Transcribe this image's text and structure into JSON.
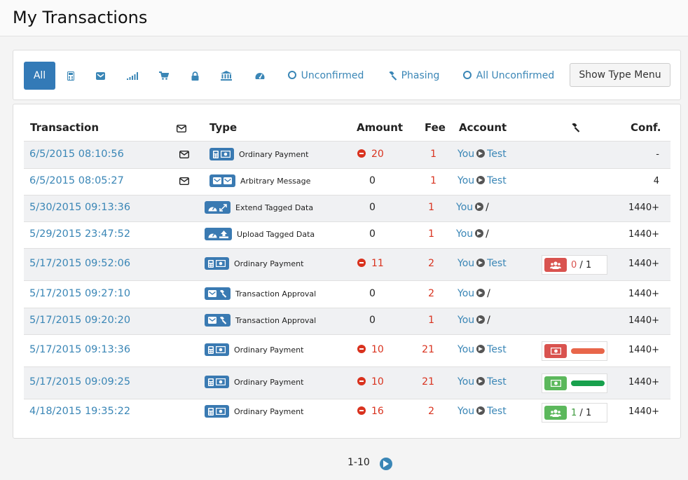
{
  "page": {
    "title": "My Transactions"
  },
  "filters": {
    "all": "All",
    "unconfirmed": "Unconfirmed",
    "phasing": "Phasing",
    "all_unconfirmed": "All Unconfirmed",
    "show_type_menu": "Show Type Menu"
  },
  "table": {
    "headers": {
      "transaction": "Transaction",
      "type": "Type",
      "amount": "Amount",
      "fee": "Fee",
      "account": "Account",
      "conf": "Conf."
    },
    "rows": [
      {
        "date": "6/5/2015 08:10:56",
        "message": true,
        "type": "Ordinary Payment",
        "amount": "20",
        "negative": true,
        "fee": "1",
        "from": "You",
        "to": "Test",
        "conf": "-"
      },
      {
        "date": "6/5/2015 08:05:27",
        "message": true,
        "type": "Arbitrary Message",
        "amount": "0",
        "negative": false,
        "fee": "1",
        "from": "You",
        "to": "Test",
        "conf": "4"
      },
      {
        "date": "5/30/2015 09:13:36",
        "message": false,
        "type": "Extend Tagged Data",
        "amount": "0",
        "negative": false,
        "fee": "1",
        "from": "You",
        "to": "/",
        "conf": "1440+"
      },
      {
        "date": "5/29/2015 23:47:52",
        "message": false,
        "type": "Upload Tagged Data",
        "amount": "0",
        "negative": false,
        "fee": "1",
        "from": "You",
        "to": "/",
        "conf": "1440+"
      },
      {
        "date": "5/17/2015 09:52:06",
        "message": false,
        "type": "Ordinary Payment",
        "amount": "11",
        "negative": true,
        "fee": "2",
        "from": "You",
        "to": "Test",
        "conf": "1440+",
        "phasing": {
          "kind": "votes",
          "color": "red",
          "count": "0",
          "of": "1"
        }
      },
      {
        "date": "5/17/2015 09:27:10",
        "message": false,
        "type": "Transaction Approval",
        "amount": "0",
        "negative": false,
        "fee": "2",
        "from": "You",
        "to": "/",
        "conf": "1440+"
      },
      {
        "date": "5/17/2015 09:20:20",
        "message": false,
        "type": "Transaction Approval",
        "amount": "0",
        "negative": false,
        "fee": "1",
        "from": "You",
        "to": "/",
        "conf": "1440+"
      },
      {
        "date": "5/17/2015 09:13:36",
        "message": false,
        "type": "Ordinary Payment",
        "amount": "10",
        "negative": true,
        "fee": "21",
        "from": "You",
        "to": "Test",
        "conf": "1440+",
        "phasing": {
          "kind": "balance",
          "color": "red"
        }
      },
      {
        "date": "5/17/2015 09:09:25",
        "message": false,
        "type": "Ordinary Payment",
        "amount": "10",
        "negative": true,
        "fee": "21",
        "from": "You",
        "to": "Test",
        "conf": "1440+",
        "phasing": {
          "kind": "balance",
          "color": "green"
        }
      },
      {
        "date": "4/18/2015 19:35:22",
        "message": false,
        "type": "Ordinary Payment",
        "amount": "16",
        "negative": true,
        "fee": "2",
        "from": "You",
        "to": "Test",
        "conf": "1440+",
        "phasing": {
          "kind": "votes",
          "color": "green",
          "count": "1",
          "of": "1"
        }
      }
    ]
  },
  "pager": {
    "range": "1-10"
  },
  "colors": {
    "accent": "#3a86b6",
    "negative": "#d9321e",
    "badge": "#3a7ab2"
  }
}
